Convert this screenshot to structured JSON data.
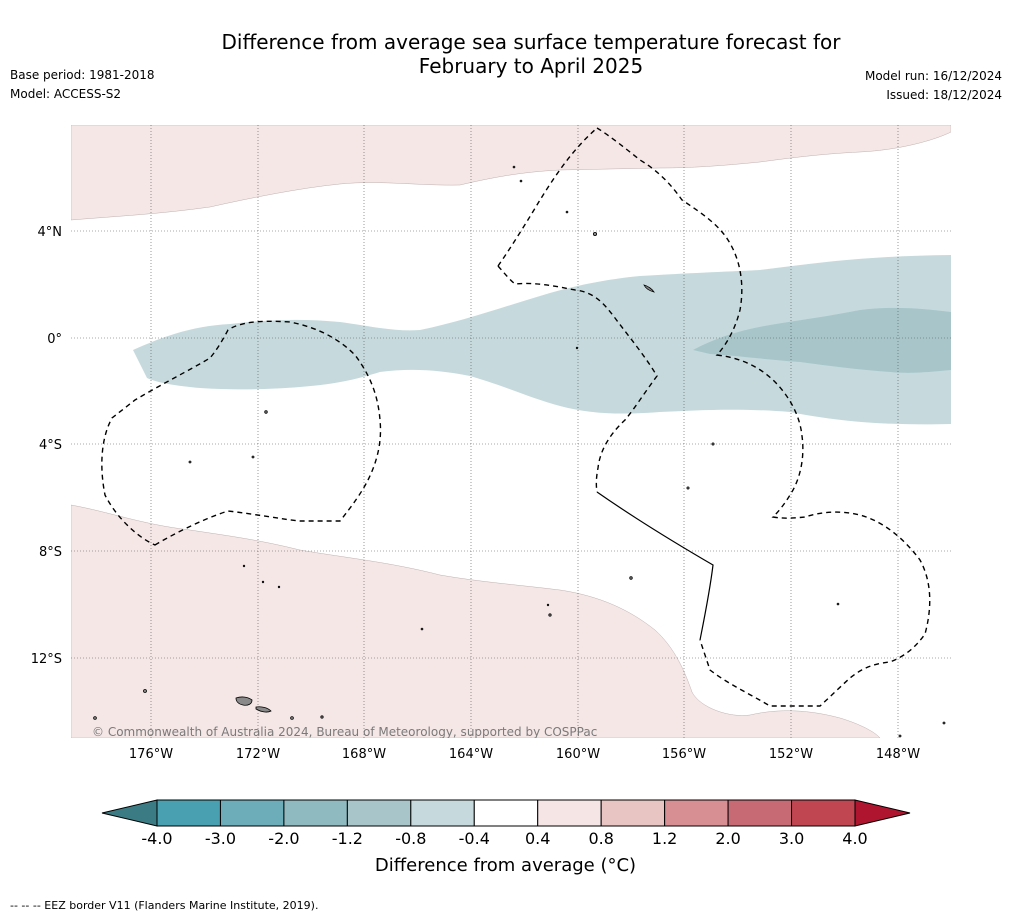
{
  "title_line1": "Difference from average sea surface temperature forecast for",
  "title_line2": "February to April 2025",
  "base_period": "Base period: 1981-2018",
  "model": "Model: ACCESS-S2",
  "model_run": "Model run: 16/12/2024",
  "issued": "Issued: 18/12/2024",
  "copyright": "© Commonwealth of Australia 2024, Bureau of Meteorology, supported by COSPPac",
  "latitude_labels": [
    "4°N",
    "0°",
    "4°S",
    "8°S",
    "12°S"
  ],
  "longitude_labels": [
    "176°W",
    "172°W",
    "168°W",
    "164°W",
    "160°W",
    "156°W",
    "152°W",
    "148°W"
  ],
  "colorbar": {
    "title": "Difference from average (°C)",
    "tick_labels": [
      "-4.0",
      "-3.0",
      "-2.0",
      "-1.2",
      "-0.8",
      "-0.4",
      "0.4",
      "0.8",
      "1.2",
      "2.0",
      "3.0",
      "4.0"
    ],
    "colors": [
      "#48a0b1",
      "#6dadba",
      "#8ebac0",
      "#a8c6ca",
      "#c6dadd",
      "#ffffff",
      "#f5e6e5",
      "#e8c5c2",
      "#d78f94",
      "#c86a74",
      "#c04652"
    ],
    "extend_low_color": "#3a7b84",
    "extend_high_color": "#b01530"
  },
  "footer_legend": "--  --  -- EEZ border V11 (Flanders Marine Institute, 2019)."
}
